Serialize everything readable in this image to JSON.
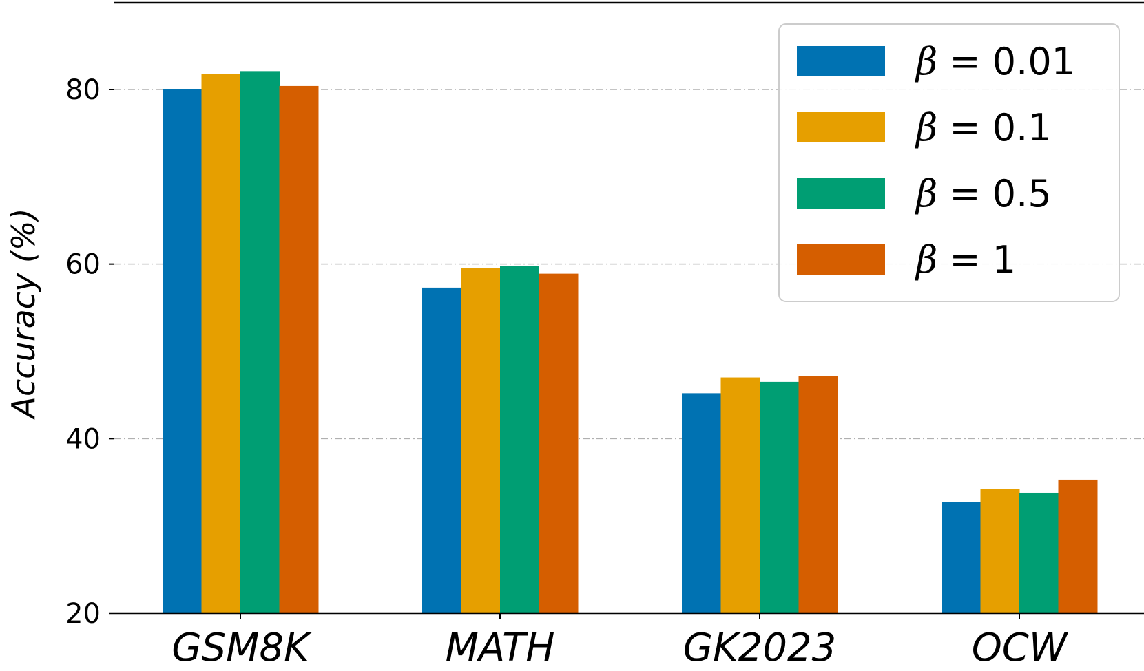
{
  "chart_data": {
    "type": "bar",
    "categories": [
      "GSM8K",
      "MATH",
      "GK2023",
      "OCW"
    ],
    "series": [
      {
        "name": "β = 0.01",
        "beta": "β",
        "value_label": "= 0.01",
        "color": "#0072B2",
        "values": [
          80.0,
          57.3,
          45.2,
          32.7
        ]
      },
      {
        "name": "β = 0.1",
        "beta": "β",
        "value_label": "= 0.1",
        "color": "#E69F00",
        "values": [
          81.8,
          59.5,
          47.0,
          34.2
        ]
      },
      {
        "name": "β = 0.5",
        "beta": "β",
        "value_label": "= 0.5",
        "color": "#009E73",
        "values": [
          82.1,
          59.8,
          46.5,
          33.8
        ]
      },
      {
        "name": "β = 1",
        "beta": "β",
        "value_label": "= 1",
        "color": "#D55E00",
        "values": [
          80.4,
          58.9,
          47.2,
          35.3
        ]
      }
    ],
    "yticks": [
      20,
      40,
      60,
      80
    ],
    "ytick_labels": [
      "20",
      "40",
      "60",
      "80"
    ],
    "ylabel": "Accuracy (%)",
    "xlabel": "",
    "title": "",
    "ylim": [
      20,
      89
    ],
    "grid": true,
    "legend": "top-right"
  }
}
